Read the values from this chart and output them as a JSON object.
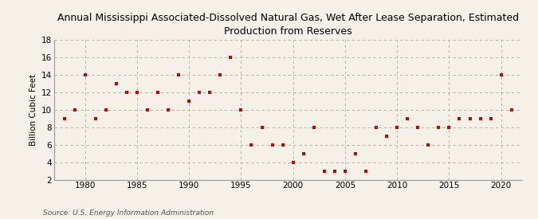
{
  "title": "Annual Mississippi Associated-Dissolved Natural Gas, Wet After Lease Separation, Estimated\nProduction from Reserves",
  "ylabel": "Billion Cubic Feet",
  "source": "Source: U.S. Energy Information Administration",
  "background_color": "#f5f0e8",
  "plot_bg_color": "#f5f0e8",
  "marker_color": "#cc0000",
  "years": [
    1978,
    1979,
    1980,
    1981,
    1982,
    1983,
    1984,
    1985,
    1986,
    1987,
    1988,
    1989,
    1990,
    1991,
    1992,
    1993,
    1994,
    1995,
    1996,
    1997,
    1998,
    1999,
    2000,
    2001,
    2002,
    2003,
    2004,
    2005,
    2006,
    2007,
    2008,
    2009,
    2010,
    2011,
    2012,
    2013,
    2014,
    2015,
    2016,
    2017,
    2018,
    2019,
    2020,
    2021
  ],
  "values": [
    9,
    10,
    14,
    9,
    10,
    13,
    12,
    12,
    10,
    12,
    10,
    14,
    11,
    12,
    12,
    14,
    16,
    10,
    6,
    8,
    6,
    6,
    4,
    5,
    8,
    3,
    3,
    3,
    5,
    3,
    8,
    7,
    8,
    9,
    8,
    6,
    8,
    8,
    9,
    9,
    9,
    9,
    14,
    10
  ],
  "xlim": [
    1977,
    2022
  ],
  "ylim": [
    2,
    18
  ],
  "yticks": [
    2,
    4,
    6,
    8,
    10,
    12,
    14,
    16,
    18
  ],
  "xticks": [
    1980,
    1985,
    1990,
    1995,
    2000,
    2005,
    2010,
    2015,
    2020
  ],
  "title_fontsize": 9,
  "ylabel_fontsize": 7.5,
  "tick_fontsize": 7.5,
  "source_fontsize": 6.5,
  "marker_size": 10
}
